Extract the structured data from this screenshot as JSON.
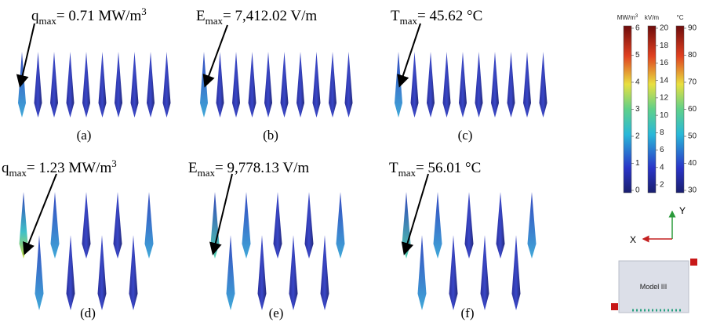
{
  "panels": [
    {
      "annotation": {
        "symbol": "q",
        "subscript": "max",
        "text": "= 0.71 MW/m",
        "superscript": "3"
      },
      "caption": "(a)"
    },
    {
      "annotation": {
        "symbol": "E",
        "subscript": "max",
        "text": "= 7,412.02 V/m"
      },
      "caption": "(b)"
    },
    {
      "annotation": {
        "symbol": "T",
        "subscript": "max",
        "text": "= 45.62 °C"
      },
      "caption": "(c)"
    },
    {
      "annotation": {
        "symbol": "q",
        "subscript": "max",
        "text": "= 1.23 MW/m",
        "superscript": "3"
      },
      "caption": "(d)"
    },
    {
      "annotation": {
        "symbol": "E",
        "subscript": "max",
        "text": "= 9,778.13 V/m"
      },
      "caption": "(e)"
    },
    {
      "annotation": {
        "symbol": "T",
        "subscript": "max",
        "text": "= 56.01 °C"
      },
      "caption": "(f)"
    }
  ],
  "colorbars": [
    {
      "unit": "MW/m",
      "unit_superscript": "3",
      "ticks": [
        0,
        1,
        2,
        3,
        4,
        5,
        6
      ]
    },
    {
      "unit": "kV/m",
      "ticks": [
        2,
        4,
        6,
        8,
        10,
        12,
        14,
        16,
        18,
        20
      ]
    },
    {
      "unit": "°C",
      "ticks": [
        30,
        40,
        50,
        60,
        70,
        80,
        90
      ]
    }
  ],
  "axes": {
    "x": "X",
    "y": "Y"
  },
  "model_label": "Model III"
}
